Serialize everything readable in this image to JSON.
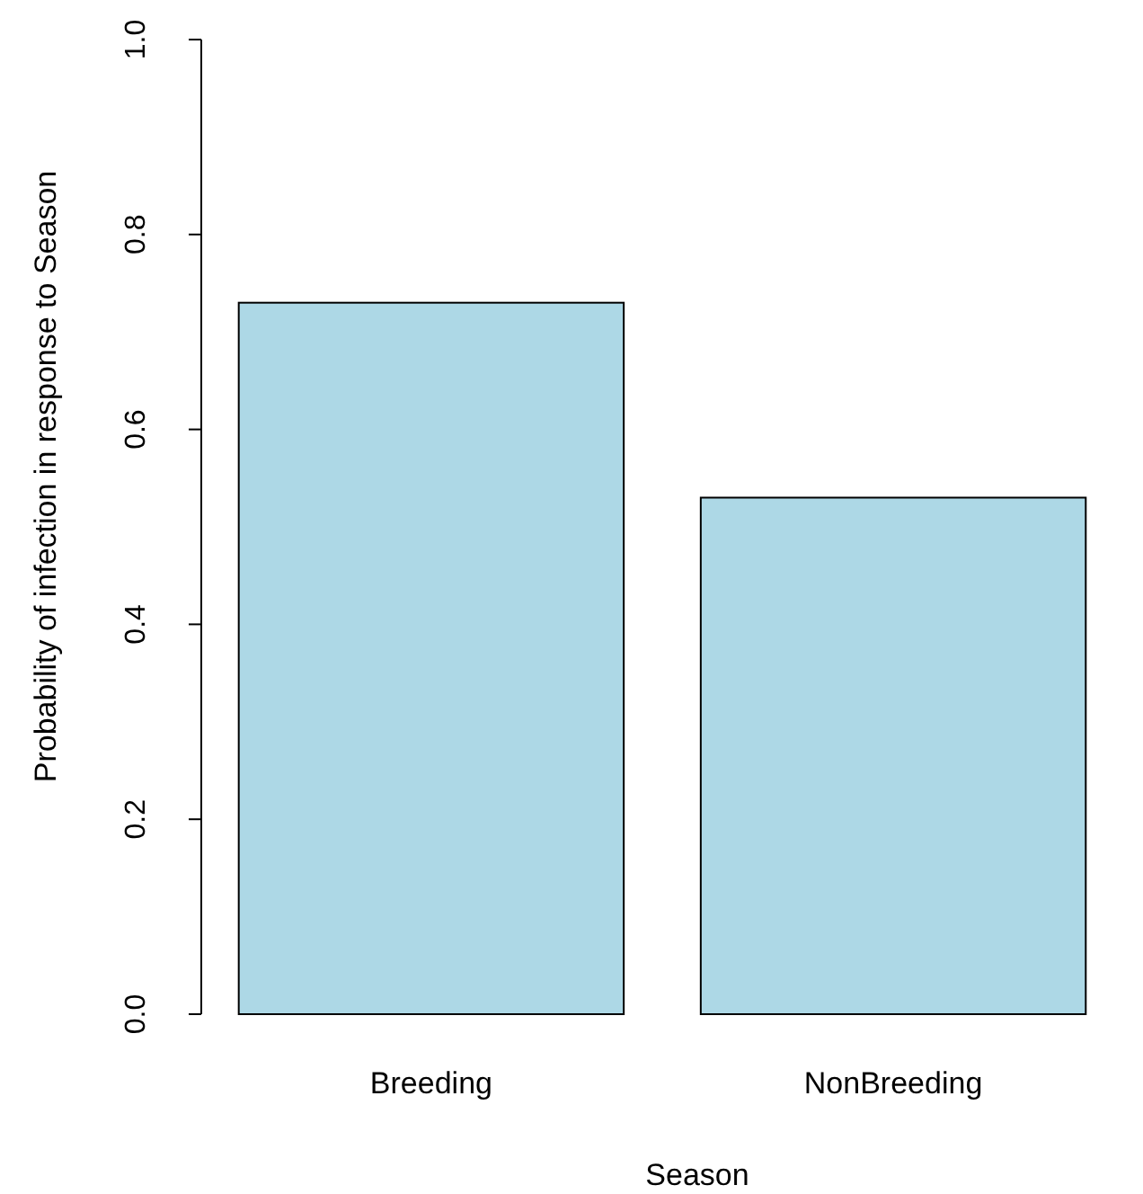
{
  "chart_data": {
    "type": "bar",
    "categories": [
      "Breeding",
      "NonBreeding"
    ],
    "values": [
      0.73,
      0.53
    ],
    "color": "#add8e6",
    "xlabel": "Season",
    "ylabel": "Probability of infection in response to Season",
    "ylim": [
      0,
      1
    ],
    "yticks": [
      {
        "value": 0,
        "label": "0.0"
      },
      {
        "value": 0.2,
        "label": "0.2"
      },
      {
        "value": 0.4,
        "label": "0.4"
      },
      {
        "value": 0.6,
        "label": "0.6"
      },
      {
        "value": 0.8,
        "label": "0.8"
      },
      {
        "value": 1,
        "label": "1.0"
      }
    ],
    "grid": false
  }
}
